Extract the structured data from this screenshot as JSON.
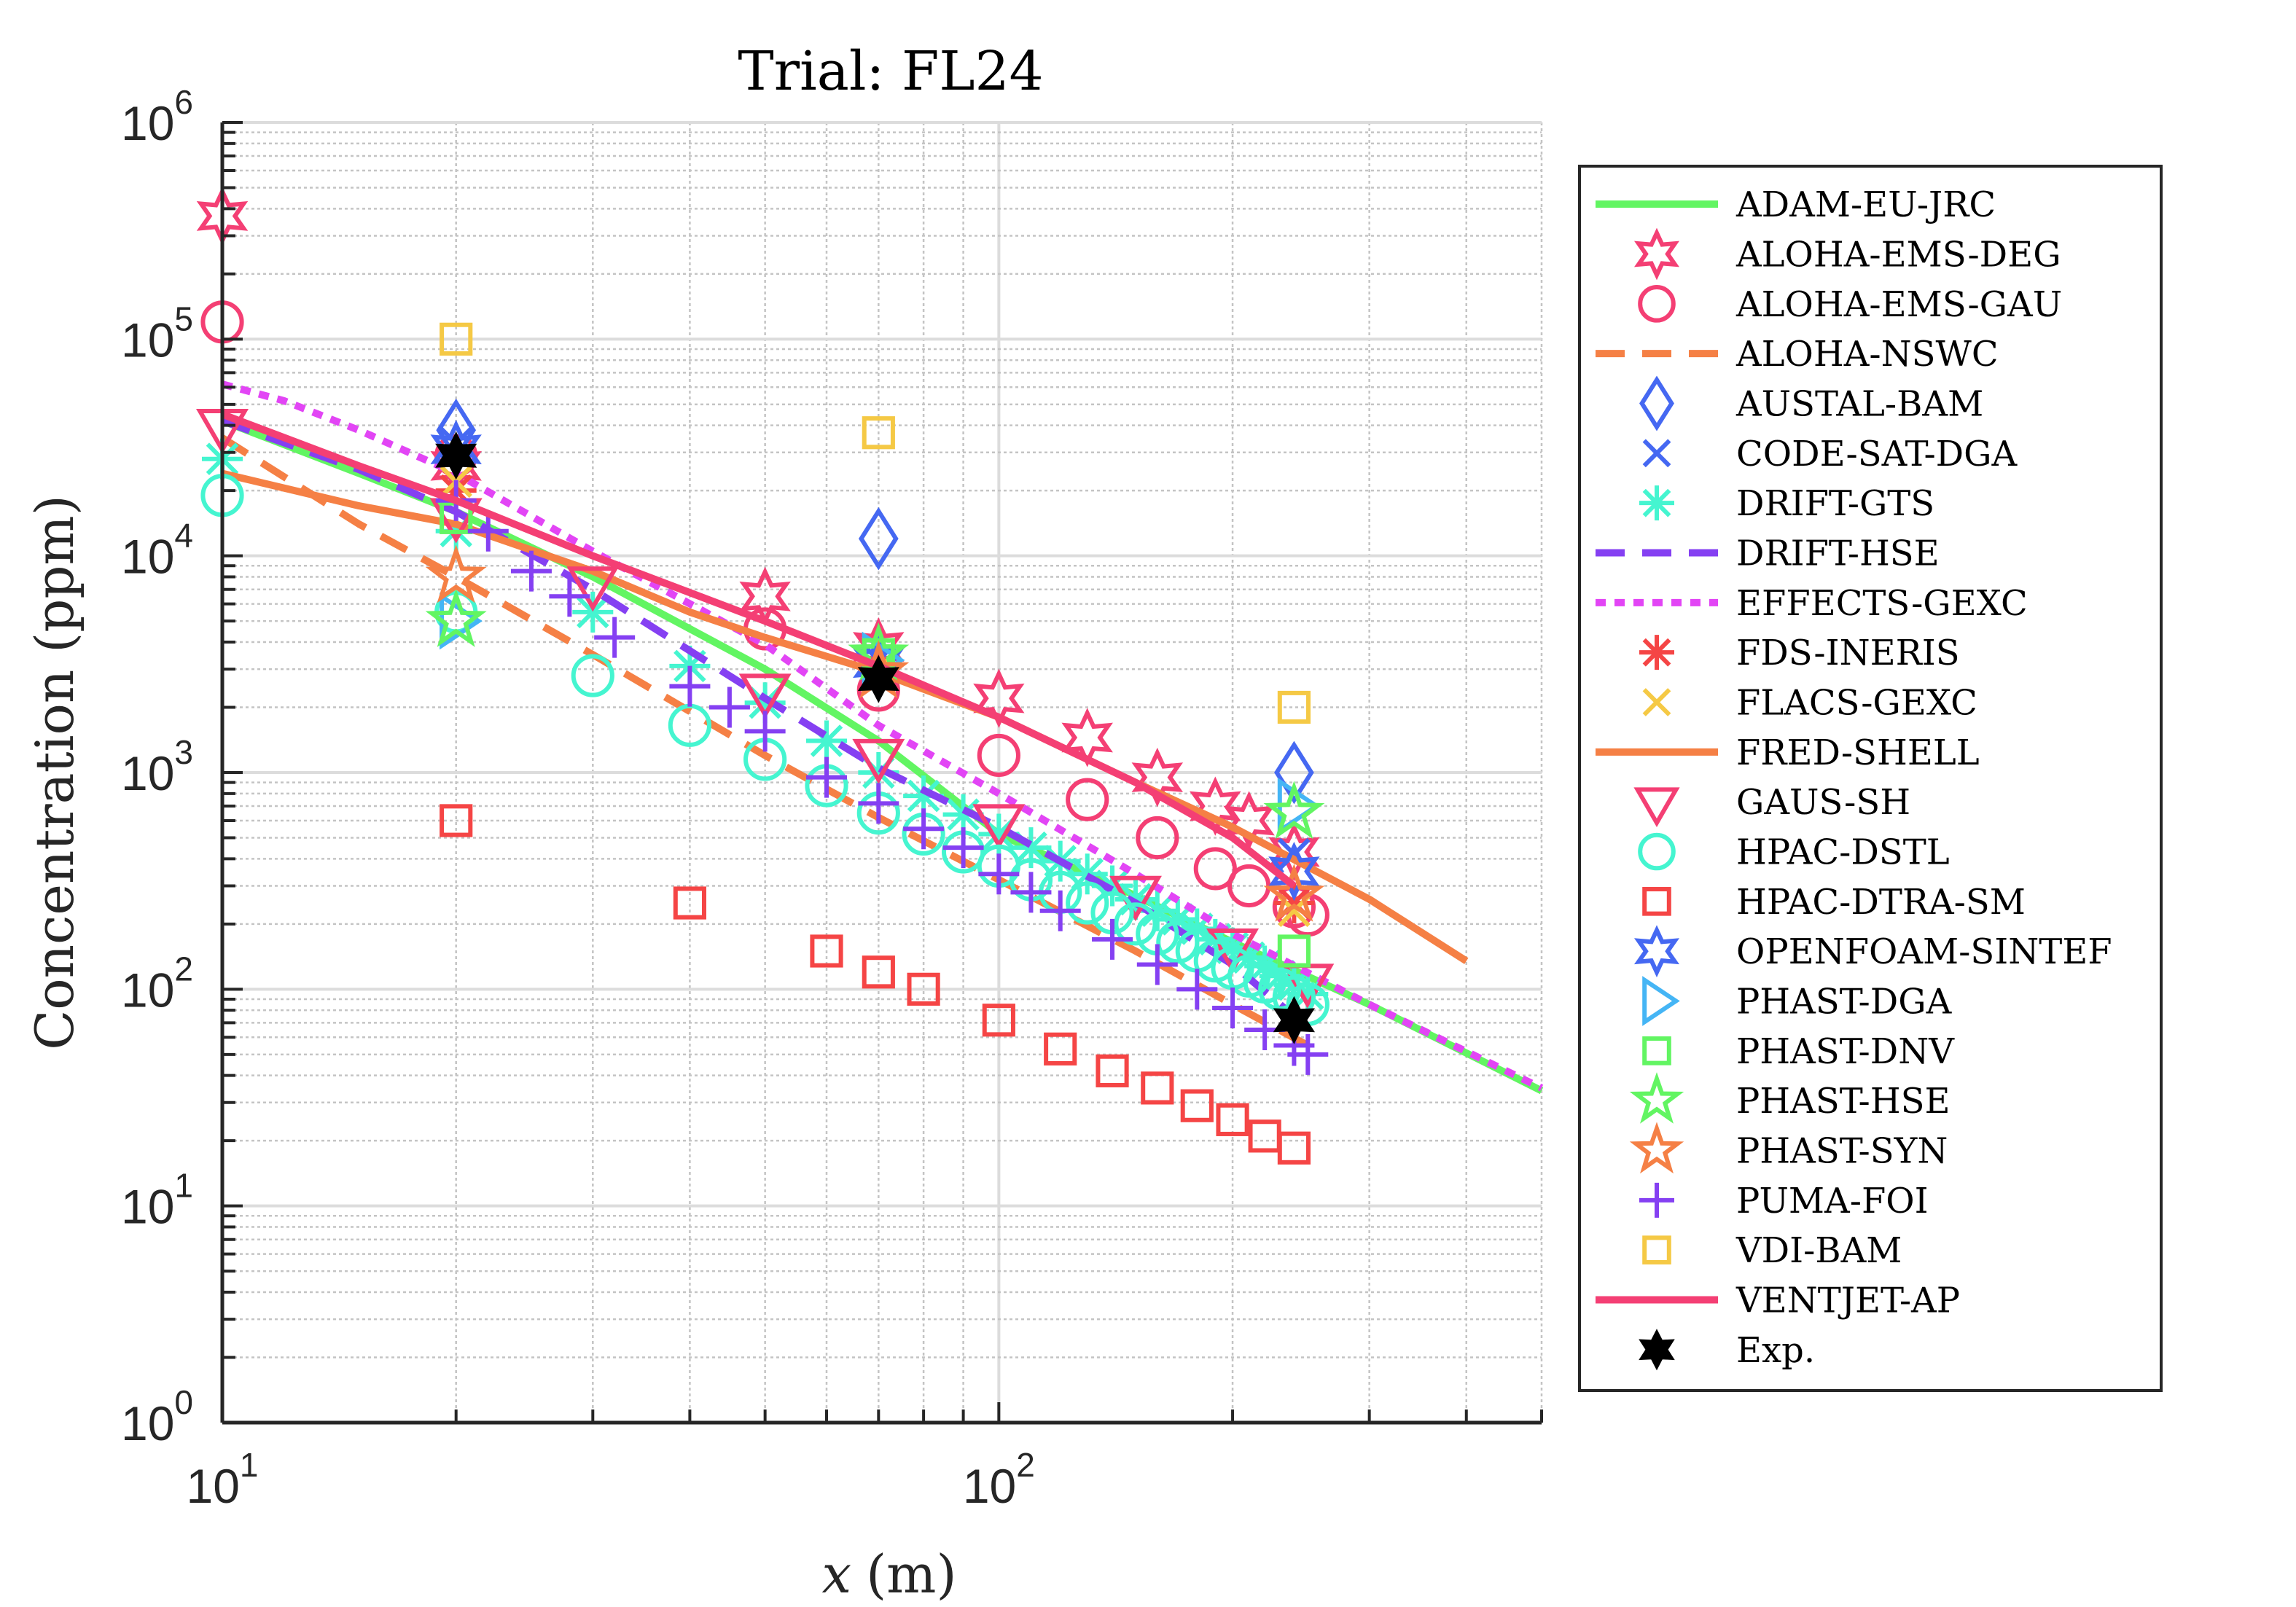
{
  "chart_data": {
    "type": "scatter",
    "title": "Trial:  FL24",
    "xlabel": "x (m)",
    "xlabel_var": "x",
    "xlabel_unit": "(m)",
    "ylabel": "Concentration (ppm)",
    "xscale": "log",
    "yscale": "log",
    "xlim": [
      10,
      500
    ],
    "ylim": [
      1,
      1000000
    ],
    "grid": true,
    "minor_grid": true,
    "legend_position": "outside-right",
    "x_ticks": [
      {
        "base": "10",
        "exp": "1",
        "value": 10
      },
      {
        "base": "10",
        "exp": "2",
        "value": 100
      }
    ],
    "y_ticks": [
      {
        "base": "10",
        "exp": "0",
        "value": 1
      },
      {
        "base": "10",
        "exp": "1",
        "value": 10
      },
      {
        "base": "10",
        "exp": "2",
        "value": 100
      },
      {
        "base": "10",
        "exp": "3",
        "value": 1000
      },
      {
        "base": "10",
        "exp": "4",
        "value": 10000
      },
      {
        "base": "10",
        "exp": "5",
        "value": 100000
      },
      {
        "base": "10",
        "exp": "6",
        "value": 1000000
      }
    ],
    "series": [
      {
        "name": "ADAM-EU-JRC",
        "style": "line",
        "dash": "solid",
        "color": "#62F562",
        "x": [
          10,
          15,
          20,
          30,
          50,
          70,
          100,
          150,
          200,
          300,
          500
        ],
        "y": [
          42000,
          24000,
          16000,
          8000,
          3000,
          1400,
          520,
          270,
          165,
          85,
          34
        ]
      },
      {
        "name": "ALOHA-EMS-DEG",
        "style": "marker",
        "marker": "hexagram",
        "color": "#F43F74",
        "x": [
          10,
          20,
          50,
          70,
          100,
          130,
          160,
          190,
          210,
          240
        ],
        "y": [
          370000,
          26000,
          6500,
          3800,
          2200,
          1450,
          950,
          700,
          600,
          430
        ]
      },
      {
        "name": "ALOHA-EMS-GAU",
        "style": "marker",
        "marker": "circle",
        "color": "#F43F74",
        "x": [
          10,
          20,
          50,
          70,
          100,
          130,
          160,
          190,
          210,
          240,
          250
        ],
        "y": [
          120000,
          29000,
          4600,
          2400,
          1200,
          750,
          500,
          360,
          300,
          240,
          220
        ]
      },
      {
        "name": "ALOHA-NSWC",
        "style": "line",
        "dash": "dashed",
        "color": "#F58045",
        "x": [
          10,
          15,
          20,
          30,
          50,
          70,
          100,
          150,
          200,
          250
        ],
        "y": [
          35000,
          14000,
          8000,
          3500,
          1200,
          620,
          320,
          150,
          85,
          55
        ]
      },
      {
        "name": "AUSTAL-BAM",
        "style": "marker",
        "marker": "diamond",
        "color": "#4568F2",
        "x": [
          20,
          70,
          240
        ],
        "y": [
          38000,
          12000,
          1000
        ]
      },
      {
        "name": "CODE-SAT-DGA",
        "style": "marker",
        "marker": "x",
        "color": "#4568F2",
        "x": [
          20,
          70,
          240
        ],
        "y": [
          33000,
          3300,
          420
        ]
      },
      {
        "name": "DRIFT-GTS",
        "style": "marker",
        "marker": "asterisk",
        "color": "#45F5D0",
        "x": [
          10,
          20,
          30,
          40,
          50,
          60,
          70,
          80,
          90,
          100,
          110,
          120,
          130,
          140,
          150,
          160,
          170,
          180,
          190,
          200,
          210,
          220,
          230,
          240,
          250
        ],
        "y": [
          28000,
          13000,
          5500,
          3100,
          2100,
          1400,
          1000,
          780,
          640,
          520,
          450,
          390,
          340,
          300,
          260,
          230,
          210,
          190,
          170,
          155,
          140,
          128,
          115,
          105,
          95
        ]
      },
      {
        "name": "DRIFT-HSE",
        "style": "line",
        "dash": "dashed",
        "color": "#8540F2",
        "x": [
          10,
          15,
          20,
          30,
          50,
          70,
          100,
          150,
          200,
          240
        ],
        "y": [
          42000,
          25000,
          16000,
          7000,
          2200,
          1050,
          560,
          250,
          130,
          75
        ]
      },
      {
        "name": "EFFECTS-GEXC",
        "style": "line",
        "dash": "dotted",
        "color": "#E245F5",
        "x": [
          10,
          12,
          15,
          20,
          30,
          50,
          70,
          100,
          150,
          200,
          300,
          500
        ],
        "y": [
          62000,
          52000,
          38000,
          24000,
          10500,
          3900,
          1650,
          800,
          340,
          180,
          85,
          35
        ]
      },
      {
        "name": "FDS-INERIS",
        "style": "marker",
        "marker": "asterisk",
        "color": "#F54545",
        "x": [
          20,
          70,
          240
        ],
        "y": [
          20000,
          3000,
          250
        ]
      },
      {
        "name": "FLACS-GEXC",
        "style": "marker",
        "marker": "x",
        "color": "#F5C945",
        "x": [
          20,
          70,
          240
        ],
        "y": [
          22000,
          3000,
          230
        ]
      },
      {
        "name": "FRED-SHELL",
        "style": "line",
        "dash": "solid",
        "color": "#F58045",
        "x": [
          10,
          15,
          20,
          30,
          40,
          50,
          70,
          100,
          150,
          200,
          300,
          400
        ],
        "y": [
          24000,
          17000,
          14000,
          8500,
          5500,
          4200,
          2900,
          1800,
          900,
          560,
          260,
          135
        ]
      },
      {
        "name": "GAUS-SH",
        "style": "marker",
        "marker": "triangle-down",
        "color": "#F43F74",
        "x": [
          10,
          20,
          30,
          50,
          70,
          100,
          150,
          200,
          250
        ],
        "y": [
          40000,
          15500,
          7500,
          2400,
          1200,
          600,
          280,
          160,
          110
        ]
      },
      {
        "name": "HPAC-DSTL",
        "style": "marker",
        "marker": "circle",
        "color": "#45F5D0",
        "x": [
          10,
          20,
          30,
          40,
          50,
          60,
          70,
          80,
          90,
          100,
          110,
          120,
          130,
          140,
          150,
          160,
          170,
          180,
          190,
          200,
          210,
          220,
          230,
          240,
          250
        ],
        "y": [
          19000,
          5500,
          2800,
          1650,
          1150,
          870,
          650,
          520,
          430,
          370,
          320,
          280,
          250,
          225,
          200,
          180,
          165,
          150,
          135,
          125,
          115,
          108,
          100,
          92,
          85
        ]
      },
      {
        "name": "HPAC-DTRA-SM",
        "style": "marker",
        "marker": "square",
        "color": "#F54545",
        "x": [
          20,
          40,
          60,
          70,
          80,
          100,
          120,
          140,
          160,
          180,
          200,
          220,
          240
        ],
        "y": [
          600,
          250,
          150,
          120,
          100,
          72,
          53,
          42,
          35,
          29,
          25,
          21,
          18.5
        ]
      },
      {
        "name": "OPENFOAM-SINTEF",
        "style": "marker",
        "marker": "hexagram",
        "color": "#4568F2",
        "x": [
          20,
          70,
          240
        ],
        "y": [
          31000,
          3200,
          350
        ]
      },
      {
        "name": "PHAST-DGA",
        "style": "marker",
        "marker": "triangle-right",
        "color": "#45B5F5",
        "x": [
          20,
          70,
          240
        ],
        "y": [
          5000,
          3300,
          700
        ]
      },
      {
        "name": "PHAST-DNV",
        "style": "marker",
        "marker": "square",
        "color": "#62F562",
        "x": [
          20,
          70,
          240
        ],
        "y": [
          15000,
          3500,
          150
        ]
      },
      {
        "name": "PHAST-HSE",
        "style": "marker",
        "marker": "pentagram",
        "color": "#62F562",
        "x": [
          20,
          70,
          240
        ],
        "y": [
          5000,
          3500,
          650
        ]
      },
      {
        "name": "PHAST-SYN",
        "style": "marker",
        "marker": "pentagram",
        "color": "#F58045",
        "x": [
          20,
          70,
          240
        ],
        "y": [
          8000,
          2900,
          270
        ]
      },
      {
        "name": "PUMA-FOI",
        "style": "marker",
        "marker": "plus",
        "color": "#8540F2",
        "x": [
          20,
          22,
          25,
          28,
          32,
          40,
          45,
          50,
          60,
          70,
          80,
          90,
          100,
          110,
          120,
          140,
          160,
          180,
          200,
          220,
          240,
          250
        ],
        "y": [
          18000,
          13000,
          8500,
          6500,
          4200,
          2500,
          2000,
          1550,
          950,
          720,
          550,
          450,
          340,
          280,
          230,
          170,
          130,
          100,
          82,
          65,
          55,
          50
        ]
      },
      {
        "name": "VDI-BAM",
        "style": "marker",
        "marker": "square",
        "color": "#F5C945",
        "x": [
          20,
          70,
          240
        ],
        "y": [
          100000,
          37000,
          2000
        ]
      },
      {
        "name": "VENTJET-AP",
        "style": "line",
        "dash": "solid",
        "color": "#F43F74",
        "x": [
          10,
          15,
          20,
          30,
          50,
          70,
          100,
          150,
          200,
          240
        ],
        "y": [
          45000,
          26000,
          18000,
          10000,
          5000,
          3100,
          1800,
          900,
          500,
          300
        ]
      },
      {
        "name": "Exp.",
        "style": "marker",
        "marker": "hexagram-filled",
        "color": "#000000",
        "x": [
          20,
          70,
          240
        ],
        "y": [
          29000,
          2700,
          72
        ]
      }
    ]
  }
}
